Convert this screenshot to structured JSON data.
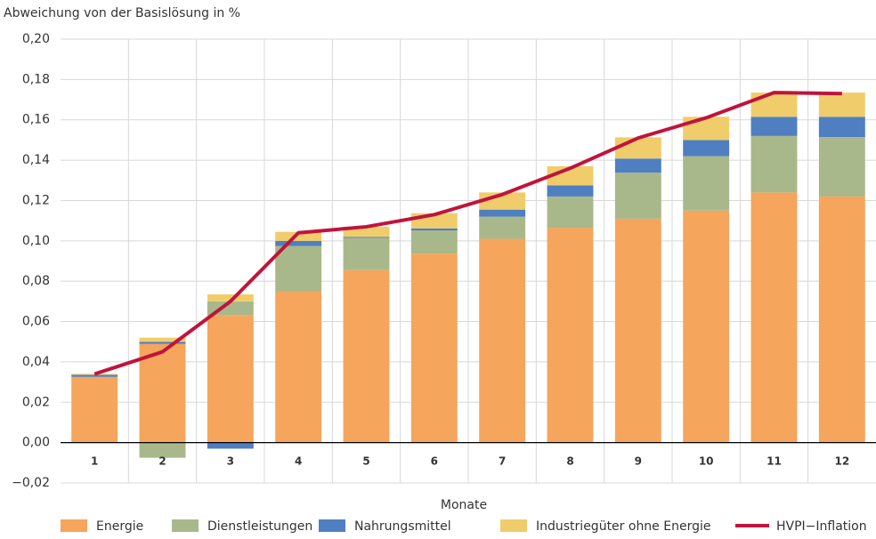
{
  "chart_data": {
    "type": "bar-line",
    "y_label": "Abweichung von der Basislösung in %",
    "x_label": "Monate",
    "categories": [
      "1",
      "2",
      "3",
      "4",
      "5",
      "6",
      "7",
      "8",
      "9",
      "10",
      "11",
      "12"
    ],
    "series": [
      {
        "name": "Energie",
        "color": "#f5a55c",
        "values": [
          0.0326,
          0.049,
          0.063,
          0.075,
          0.0855,
          0.0937,
          0.101,
          0.1065,
          0.111,
          0.115,
          0.124,
          0.122
        ]
      },
      {
        "name": "Dienstleistungen",
        "color": "#a9b88a",
        "values": [
          0,
          -0.0075,
          0.007,
          0.0225,
          0.016,
          0.0115,
          0.011,
          0.0155,
          0.0228,
          0.027,
          0.028,
          0.0295
        ]
      },
      {
        "name": "Nahrungsmittel",
        "color": "#4f7fc1",
        "values": [
          0.001,
          0.001,
          -0.003,
          0.0025,
          0.0005,
          0.001,
          0.0035,
          0.0055,
          0.007,
          0.008,
          0.0095,
          0.01
        ]
      },
      {
        "name": "Industriegüter ohne Energie",
        "color": "#f0cd6a",
        "values": [
          0.0005,
          0.002,
          0.0035,
          0.0045,
          0.005,
          0.0075,
          0.0085,
          0.0095,
          0.0105,
          0.0115,
          0.012,
          0.012
        ]
      },
      {
        "name": "HVPI−Inflation",
        "color": "#c0143c",
        "type": "line",
        "values": [
          0.034,
          0.045,
          0.07,
          0.104,
          0.107,
          0.113,
          0.123,
          0.136,
          0.151,
          0.161,
          0.1735,
          0.173
        ]
      }
    ],
    "ylim": [
      -0.02,
      0.2
    ],
    "yticks": [
      {
        "value": -0.02,
        "label": "−0,02"
      },
      {
        "value": 0,
        "label": "0,00"
      },
      {
        "value": 0.02,
        "label": "0,02"
      },
      {
        "value": 0.04,
        "label": "0,04"
      },
      {
        "value": 0.06,
        "label": "0,06"
      },
      {
        "value": 0.08,
        "label": "0,08"
      },
      {
        "value": 0.1,
        "label": "0,10"
      },
      {
        "value": 0.12,
        "label": "0,12"
      },
      {
        "value": 0.14,
        "label": "0,14"
      },
      {
        "value": 0.16,
        "label": "0,16"
      },
      {
        "value": 0.18,
        "label": "0,18"
      },
      {
        "value": 0.2,
        "label": "0,20"
      }
    ],
    "grid": true
  }
}
